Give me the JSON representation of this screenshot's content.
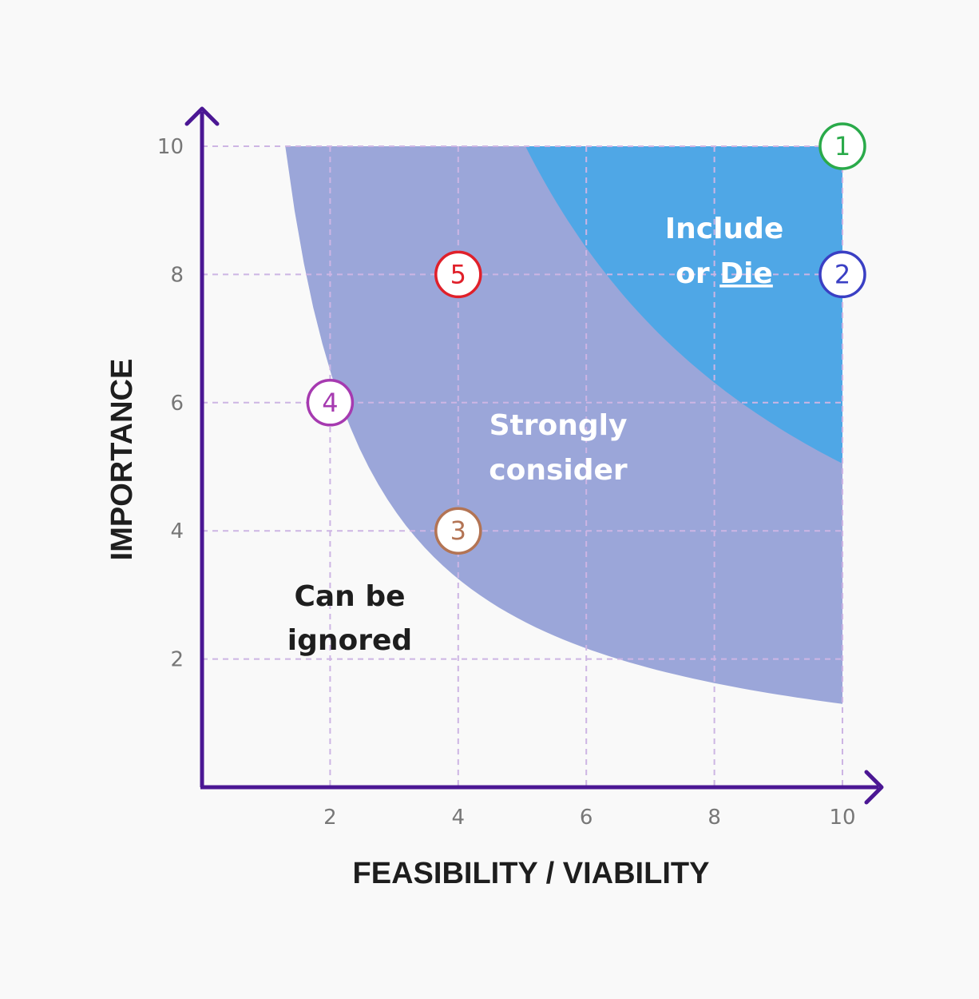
{
  "chart_data": {
    "type": "scatter",
    "title": "",
    "xlabel": "FEASIBILITY / VIABILITY",
    "ylabel": "IMPORTANCE",
    "xlim": [
      0,
      10
    ],
    "ylim": [
      0,
      10
    ],
    "x_ticks": [
      "2",
      "4",
      "6",
      "8",
      "10"
    ],
    "y_ticks": [
      "2",
      "4",
      "6",
      "8",
      "10"
    ],
    "grid": true,
    "regions": [
      {
        "label_lines": [
          "Can be",
          "ignored"
        ],
        "underline_word": "",
        "color": "#f9f9f9",
        "text_color": "#1e1e1e"
      },
      {
        "label_lines": [
          "Strongly",
          "consider"
        ],
        "underline_word": "",
        "color": "#9ba6d9",
        "text_color": "#ffffff"
      },
      {
        "label_lines": [
          "Include",
          "or Die"
        ],
        "underline_word": "Die",
        "color": "#4fa7e6",
        "text_color": "#ffffff"
      }
    ],
    "points": [
      {
        "label": "1",
        "x": 10,
        "y": 10,
        "color": "#2aaa4a"
      },
      {
        "label": "2",
        "x": 10,
        "y": 8,
        "color": "#3a3fc4"
      },
      {
        "label": "3",
        "x": 4,
        "y": 4,
        "color": "#b37454"
      },
      {
        "label": "4",
        "x": 2,
        "y": 6,
        "color": "#a63ab0"
      },
      {
        "label": "5",
        "x": 4,
        "y": 8,
        "color": "#e0202a"
      }
    ],
    "axis_color": "#4b1794",
    "grid_color": "#cdb5e4"
  }
}
